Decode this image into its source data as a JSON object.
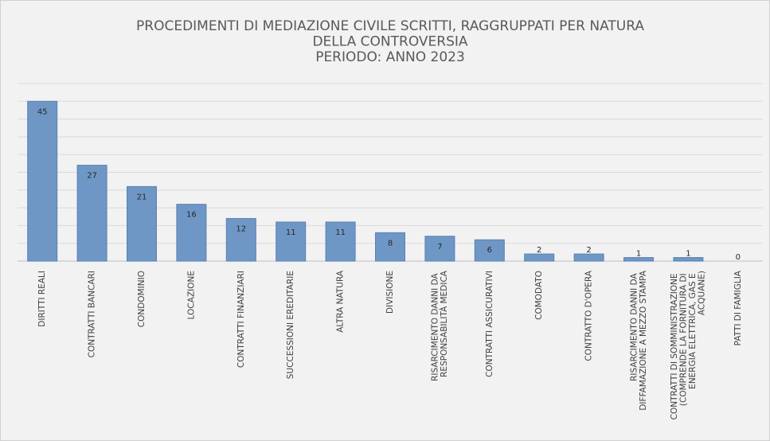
{
  "chart_data": {
    "type": "bar",
    "title": [
      "PROCEDIMENTI DI MEDIAZIONE CIVILE SCRITTI, RAGGRUPPATI PER NATURA",
      "DELLA CONTROVERSIA",
      "PERIODO: ANNO 2023"
    ],
    "categories": [
      "DIRITTI REALI",
      "CONTRATTI BANCARI",
      "CONDOMINIO",
      "LOCAZIONE",
      "CONTRATTI FINANZIARI",
      "SUCCESSIONI EREDITARIE",
      "ALTRA NATURA",
      "DIVISIONE",
      "RISARCIMENTO DANNI DA RESPONSABILITÀ MEDICA",
      "CONTRATTI ASSICURATIVI",
      "COMODATO",
      "CONTRATTO D'OPERA",
      "RISARCIMENTO DANNI DA DIFFAMAZIONE A MEZZO STAMPA",
      "CONTRATTI DI SOMMINISTRAZIONE (COMPRENDE LA FORNITURA DI ENERGIA ELETTRICA, GAS E ACQUANE)",
      "PATTI DI FAMIGLIA"
    ],
    "values": [
      45,
      27,
      21,
      16,
      12,
      11,
      11,
      8,
      7,
      6,
      2,
      2,
      1,
      1,
      0
    ],
    "color": "#6f97c6",
    "ylim": [
      0,
      50
    ],
    "yticks": [
      0,
      5,
      10,
      15,
      20,
      25,
      30,
      35,
      40,
      45,
      50
    ],
    "grid": true
  }
}
